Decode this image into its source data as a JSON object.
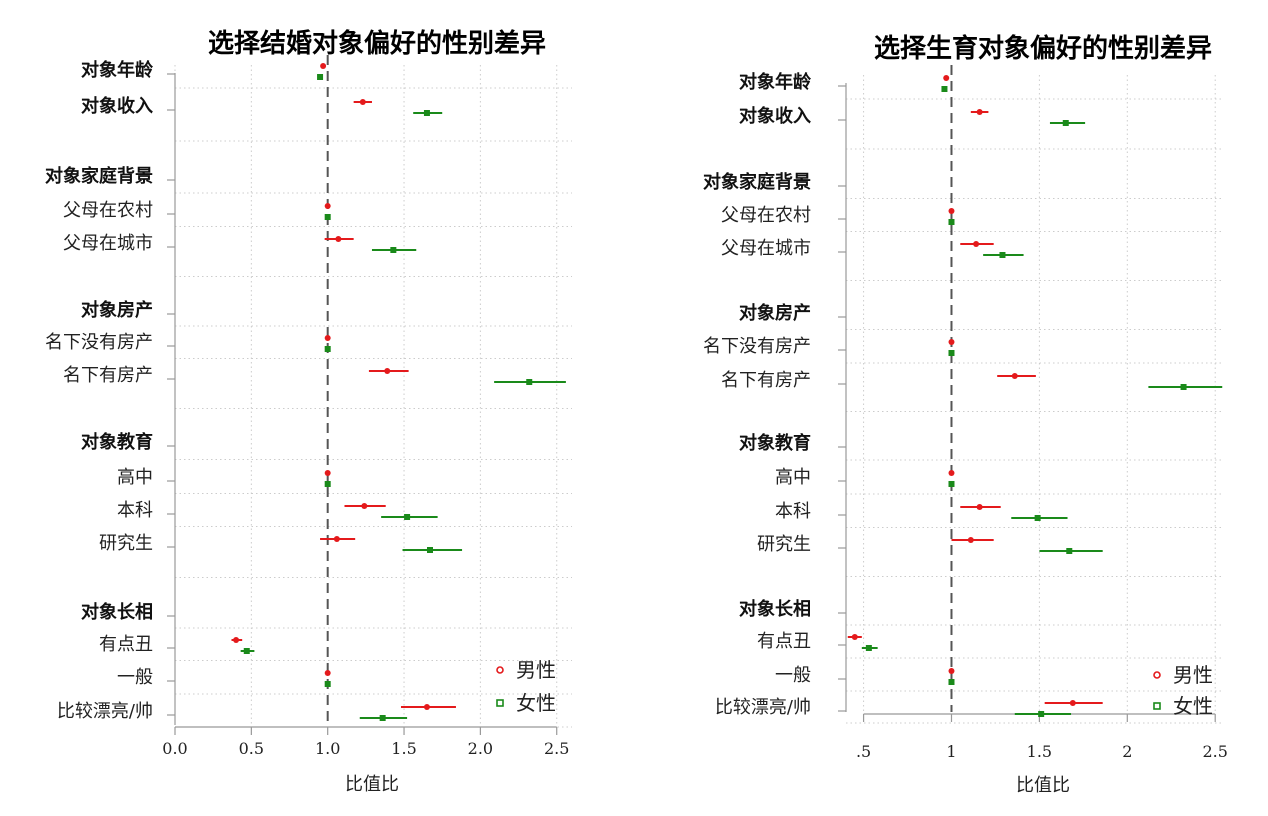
{
  "colors": {
    "male": "#e41a1c",
    "female": "#1a8a1a",
    "reference": "#555555"
  },
  "chart_data": [
    {
      "type": "forest",
      "title": "选择结婚对象偏好的性别差异",
      "xlabel": "比值比",
      "xlim": [
        0,
        2.6
      ],
      "xticks": [
        {
          "v": 0,
          "label": "0.0"
        },
        {
          "v": 0.5,
          "label": "0.5"
        },
        {
          "v": 1,
          "label": "1.0"
        },
        {
          "v": 1.5,
          "label": "1.5"
        },
        {
          "v": 2,
          "label": "2.0"
        },
        {
          "v": 2.5,
          "label": "2.5"
        }
      ],
      "reference": 1,
      "legend": {
        "position": "bottom-right",
        "entries": [
          "男性",
          "女性"
        ]
      },
      "rows": [
        {
          "label": "对象年龄",
          "bold": true,
          "male": [
            0.97,
            0.97,
            0.97
          ],
          "female": [
            0.95,
            0.95,
            0.95
          ]
        },
        {
          "label": "对象收入",
          "bold": true,
          "male": [
            1.23,
            1.17,
            1.29
          ],
          "female": [
            1.65,
            1.56,
            1.75
          ]
        },
        {
          "label": "对象家庭背景",
          "bold": true
        },
        {
          "label": "父母在农村",
          "bold": false,
          "male": [
            1.0,
            1.0,
            1.0
          ],
          "female": [
            1.0,
            1.0,
            1.0
          ]
        },
        {
          "label": "父母在城市",
          "bold": false,
          "male": [
            1.07,
            0.98,
            1.17
          ],
          "female": [
            1.43,
            1.29,
            1.58
          ]
        },
        {
          "label": "对象房产",
          "bold": true
        },
        {
          "label": "名下没有房产",
          "bold": false,
          "male": [
            1.0,
            1.0,
            1.0
          ],
          "female": [
            1.0,
            1.0,
            1.0
          ]
        },
        {
          "label": "名下有房产",
          "bold": false,
          "male": [
            1.39,
            1.27,
            1.53
          ],
          "female": [
            2.32,
            2.09,
            2.56
          ]
        },
        {
          "label": "对象教育",
          "bold": true
        },
        {
          "label": "高中",
          "bold": false,
          "male": [
            1.0,
            1.0,
            1.0
          ],
          "female": [
            1.0,
            1.0,
            1.0
          ]
        },
        {
          "label": "本科",
          "bold": false,
          "male": [
            1.24,
            1.11,
            1.38
          ],
          "female": [
            1.52,
            1.35,
            1.72
          ]
        },
        {
          "label": "研究生",
          "bold": false,
          "male": [
            1.06,
            0.95,
            1.18
          ],
          "female": [
            1.67,
            1.49,
            1.88
          ]
        },
        {
          "label": "对象长相",
          "bold": true
        },
        {
          "label": "有点丑",
          "bold": false,
          "male": [
            0.4,
            0.37,
            0.44
          ],
          "female": [
            0.47,
            0.43,
            0.52
          ]
        },
        {
          "label": "一般",
          "bold": false,
          "male": [
            1.0,
            1.0,
            1.0
          ],
          "female": [
            1.0,
            1.0,
            1.0
          ]
        },
        {
          "label": "比较漂亮/帅",
          "bold": false,
          "male": [
            1.65,
            1.48,
            1.84
          ],
          "female": [
            1.36,
            1.21,
            1.52
          ]
        }
      ]
    },
    {
      "type": "forest",
      "title": "选择生育对象偏好的性别差异",
      "xlabel": "比值比",
      "xlim": [
        0.4,
        2.55
      ],
      "xticks": [
        {
          "v": 0.5,
          "label": ".5"
        },
        {
          "v": 1,
          "label": "1"
        },
        {
          "v": 1.5,
          "label": "1.5"
        },
        {
          "v": 2,
          "label": "2"
        },
        {
          "v": 2.5,
          "label": "2.5"
        }
      ],
      "reference": 1,
      "legend": {
        "position": "bottom-right",
        "entries": [
          "男性",
          "女性"
        ]
      },
      "rows": [
        {
          "label": "对象年龄",
          "bold": true,
          "male": [
            0.97,
            0.97,
            0.97
          ],
          "female": [
            0.96,
            0.96,
            0.96
          ]
        },
        {
          "label": "对象收入",
          "bold": true,
          "male": [
            1.16,
            1.11,
            1.21
          ],
          "female": [
            1.65,
            1.56,
            1.76
          ]
        },
        {
          "label": "对象家庭背景",
          "bold": true
        },
        {
          "label": "父母在农村",
          "bold": false,
          "male": [
            1.0,
            1.0,
            1.0
          ],
          "female": [
            1.0,
            1.0,
            1.0
          ]
        },
        {
          "label": "父母在城市",
          "bold": false,
          "male": [
            1.14,
            1.05,
            1.24
          ],
          "female": [
            1.29,
            1.18,
            1.41
          ]
        },
        {
          "label": "对象房产",
          "bold": true
        },
        {
          "label": "名下没有房产",
          "bold": false,
          "male": [
            1.0,
            1.0,
            1.0
          ],
          "female": [
            1.0,
            1.0,
            1.0
          ]
        },
        {
          "label": "名下有房产",
          "bold": false,
          "male": [
            1.36,
            1.26,
            1.48
          ],
          "female": [
            2.32,
            2.12,
            2.54
          ]
        },
        {
          "label": "对象教育",
          "bold": true
        },
        {
          "label": "高中",
          "bold": false,
          "male": [
            1.0,
            1.0,
            1.0
          ],
          "female": [
            1.0,
            1.0,
            1.0
          ]
        },
        {
          "label": "本科",
          "bold": false,
          "male": [
            1.16,
            1.05,
            1.28
          ],
          "female": [
            1.49,
            1.34,
            1.66
          ]
        },
        {
          "label": "研究生",
          "bold": false,
          "male": [
            1.11,
            1.0,
            1.24
          ],
          "female": [
            1.67,
            1.5,
            1.86
          ]
        },
        {
          "label": "对象长相",
          "bold": true
        },
        {
          "label": "有点丑",
          "bold": false,
          "male": [
            0.45,
            0.41,
            0.49
          ],
          "female": [
            0.53,
            0.49,
            0.58
          ]
        },
        {
          "label": "一般",
          "bold": false,
          "male": [
            1.0,
            1.0,
            1.0
          ],
          "female": [
            1.0,
            1.0,
            1.0
          ]
        },
        {
          "label": "比较漂亮/帅",
          "bold": false,
          "male": [
            1.69,
            1.53,
            1.86
          ],
          "female": [
            1.51,
            1.36,
            1.68
          ]
        }
      ]
    }
  ]
}
